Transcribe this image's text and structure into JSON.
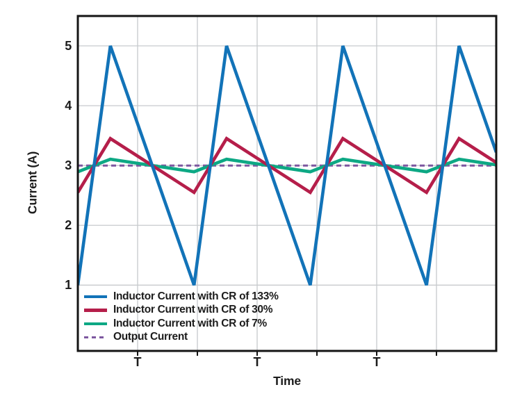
{
  "figure": {
    "background_color": "#ffffff",
    "text_color": "#1c1c1c",
    "grid_color": "#c7cacd",
    "border_color": "#141414"
  },
  "chart_data": {
    "type": "line",
    "title": "",
    "xlabel": "Time",
    "ylabel": "Current (A)",
    "xlim_T": [
      0,
      3.6
    ],
    "ylim": [
      -0.1,
      5.5
    ],
    "y_ticks": [
      1,
      2,
      3,
      4,
      5
    ],
    "grid": true,
    "x_gridline_count": 7,
    "x_tick_label": "T",
    "x_tick_gridline_indices": [
      1,
      3,
      5
    ],
    "legend_position": "bottom-left",
    "series": [
      {
        "name": "Inductor Current with CR of 133%",
        "color": "#1273b8",
        "line_style": "solid",
        "waveform": "triangle_periodic",
        "period_T": 1,
        "peak_offset_T": 0.28,
        "min_A": 1.0,
        "max_A": 5.0,
        "avg_A": 3.0
      },
      {
        "name": "Inductor Current with CR of 30%",
        "color": "#b51e4a",
        "line_style": "solid",
        "waveform": "triangle_periodic",
        "period_T": 1,
        "peak_offset_T": 0.28,
        "min_A": 2.55,
        "max_A": 3.45,
        "avg_A": 3.0
      },
      {
        "name": "Inductor Current with CR of 7%",
        "color": "#0da884",
        "line_style": "solid",
        "waveform": "triangle_periodic",
        "period_T": 1,
        "peak_offset_T": 0.28,
        "min_A": 2.895,
        "max_A": 3.105,
        "avg_A": 3.0
      },
      {
        "name": "Output Current",
        "color": "#7d57a0",
        "line_style": "dashed",
        "waveform": "constant",
        "value_A": 3.0
      }
    ]
  }
}
